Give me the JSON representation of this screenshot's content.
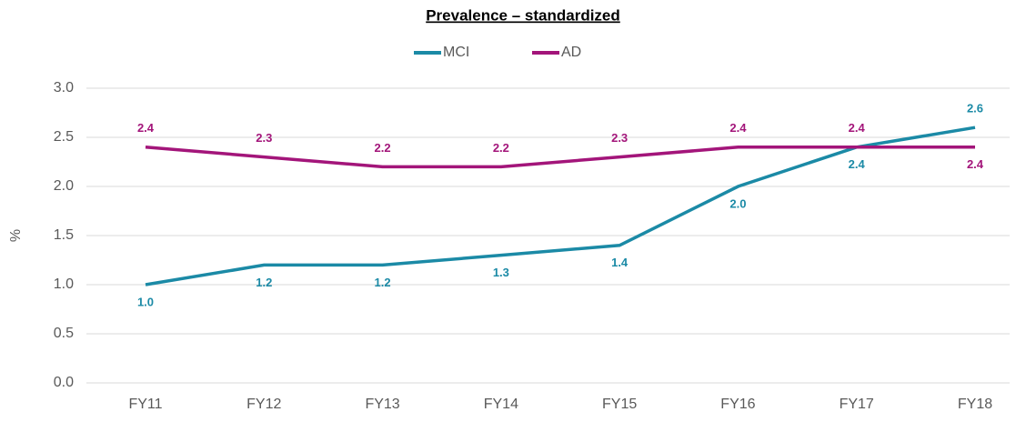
{
  "chart_data": {
    "type": "line",
    "title": "Prevalence – standardized",
    "y_label": "%",
    "categories": [
      "FY11",
      "FY12",
      "FY13",
      "FY14",
      "FY15",
      "FY16",
      "FY17",
      "FY18"
    ],
    "series": [
      {
        "name": "MCI",
        "color": "#1b8aa6",
        "values": [
          1.0,
          1.2,
          1.2,
          1.3,
          1.4,
          2.0,
          2.4,
          2.6
        ],
        "value_labels": [
          "1.0",
          "1.2",
          "1.2",
          "1.3",
          "1.4",
          "2.0",
          "2.4",
          "2.6"
        ]
      },
      {
        "name": "AD",
        "color": "#a3157a",
        "values": [
          2.4,
          2.3,
          2.2,
          2.2,
          2.3,
          2.4,
          2.4,
          2.4
        ],
        "value_labels": [
          "2.4",
          "2.3",
          "2.2",
          "2.2",
          "2.3",
          "2.4",
          "2.4",
          "2.4"
        ]
      }
    ],
    "ylim": [
      0,
      3
    ],
    "yticks": [
      {
        "value": 0,
        "label": "0.0"
      },
      0.5,
      {
        "value": 1,
        "label": "1.0"
      },
      1.5,
      {
        "value": 2,
        "label": "2.0"
      },
      2.5,
      {
        "value": 3,
        "label": "3.0"
      }
    ],
    "grid": true,
    "legend": "top"
  }
}
